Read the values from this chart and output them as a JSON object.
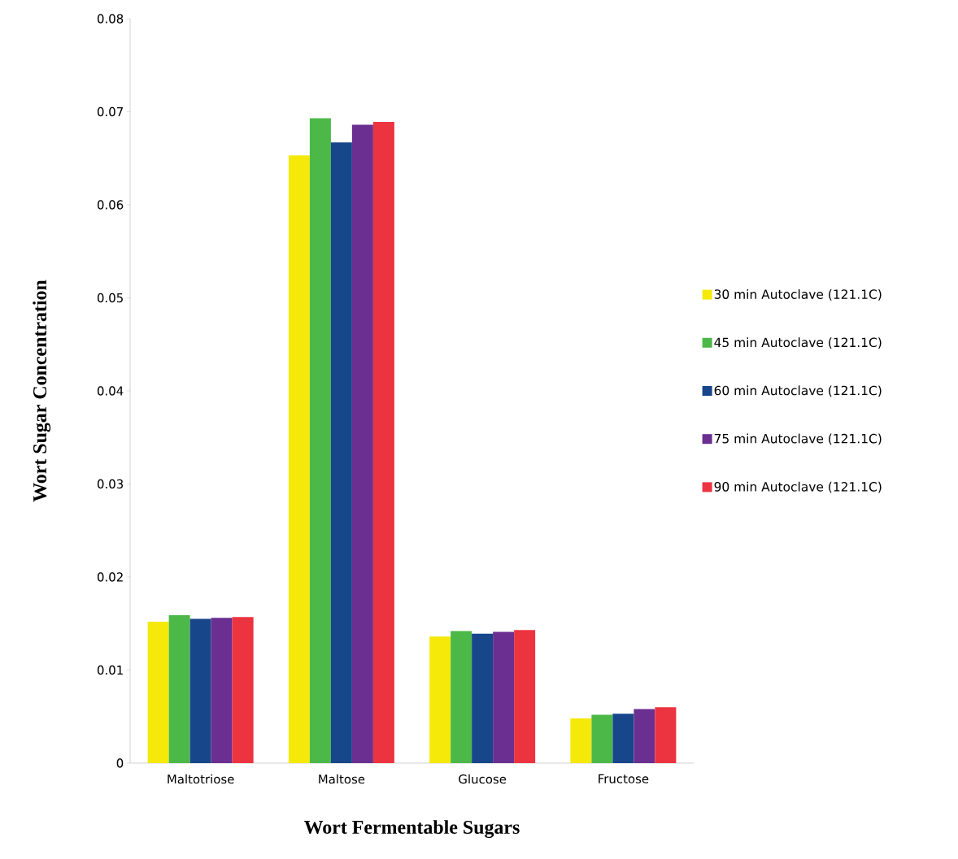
{
  "chart_data": {
    "type": "bar",
    "xlabel": "Wort Fermentable Sugars",
    "ylabel": "Wort Sugar Concentration",
    "categories": [
      "Maltotriose",
      "Maltose",
      "Glucose",
      "Fructose"
    ],
    "series": [
      {
        "name": "30 min Autoclave (121.1C)",
        "color": "#f5e90a",
        "values": [
          0.0152,
          0.0653,
          0.0136,
          0.0048
        ]
      },
      {
        "name": "45 min Autoclave (121.1C)",
        "color": "#4cb848",
        "values": [
          0.0159,
          0.0693,
          0.0142,
          0.0052
        ]
      },
      {
        "name": "60 min Autoclave (121.1C)",
        "color": "#17468a",
        "values": [
          0.0155,
          0.0667,
          0.0139,
          0.0053
        ]
      },
      {
        "name": "75 min Autoclave (121.1C)",
        "color": "#6a2f91",
        "values": [
          0.0156,
          0.0686,
          0.0141,
          0.0058
        ]
      },
      {
        "name": "90 min Autoclave (121.1C)",
        "color": "#ec3340",
        "values": [
          0.0157,
          0.0689,
          0.0143,
          0.006
        ]
      }
    ],
    "ylim": [
      0,
      0.08
    ],
    "yticks": [
      0,
      0.01,
      0.02,
      0.03,
      0.04,
      0.05,
      0.06,
      0.07,
      0.08
    ],
    "legend": "right"
  }
}
